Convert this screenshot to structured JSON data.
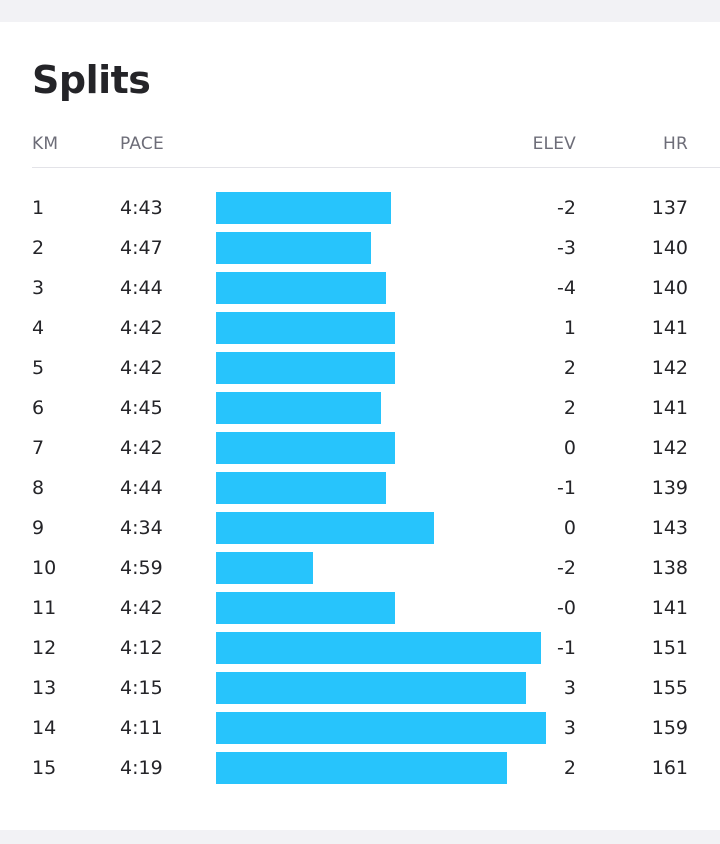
{
  "title": "Splits",
  "columns": {
    "km": "KM",
    "pace": "PACE",
    "elev": "ELEV",
    "hr": "HR"
  },
  "colors": {
    "bar": "#27c4fc",
    "text": "#242428",
    "header_text": "#6d6d78"
  },
  "splits": [
    {
      "km": "1",
      "pace": "4:43",
      "elev": "-2",
      "hr": "137"
    },
    {
      "km": "2",
      "pace": "4:47",
      "elev": "-3",
      "hr": "140"
    },
    {
      "km": "3",
      "pace": "4:44",
      "elev": "-4",
      "hr": "140"
    },
    {
      "km": "4",
      "pace": "4:42",
      "elev": "1",
      "hr": "141"
    },
    {
      "km": "5",
      "pace": "4:42",
      "elev": "2",
      "hr": "142"
    },
    {
      "km": "6",
      "pace": "4:45",
      "elev": "2",
      "hr": "141"
    },
    {
      "km": "7",
      "pace": "4:42",
      "elev": "0",
      "hr": "142"
    },
    {
      "km": "8",
      "pace": "4:44",
      "elev": "-1",
      "hr": "139"
    },
    {
      "km": "9",
      "pace": "4:34",
      "elev": "0",
      "hr": "143"
    },
    {
      "km": "10",
      "pace": "4:59",
      "elev": "-2",
      "hr": "138"
    },
    {
      "km": "11",
      "pace": "4:42",
      "elev": "-0",
      "hr": "141"
    },
    {
      "km": "12",
      "pace": "4:12",
      "elev": "-1",
      "hr": "151"
    },
    {
      "km": "13",
      "pace": "4:15",
      "elev": "3",
      "hr": "155"
    },
    {
      "km": "14",
      "pace": "4:11",
      "elev": "3",
      "hr": "159"
    },
    {
      "km": "15",
      "pace": "4:19",
      "elev": "2",
      "hr": "161"
    }
  ]
}
